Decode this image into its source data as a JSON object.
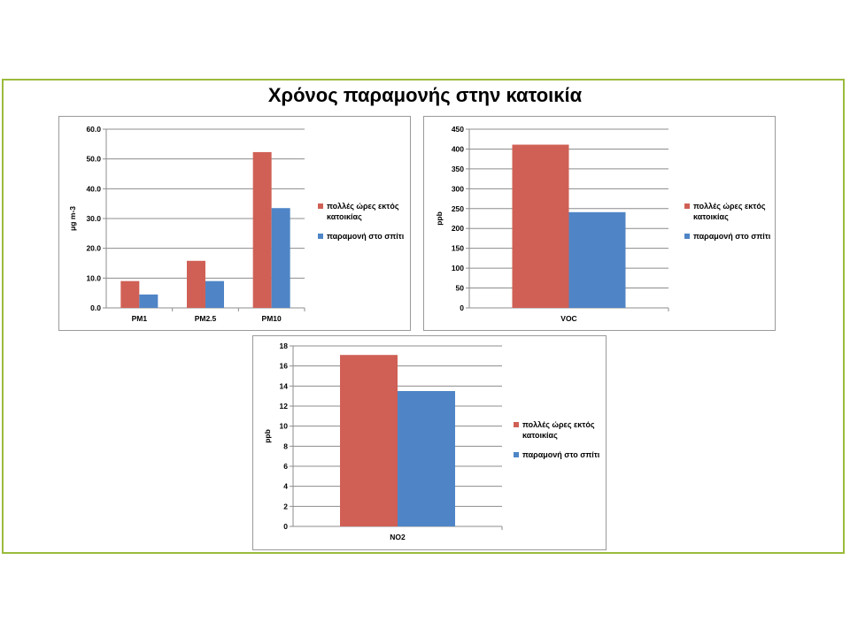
{
  "title": "Χρόνος παραμονής στην κατοικία",
  "colors": {
    "series_a": "#d06055",
    "series_b": "#4f85c6",
    "frame": "#9bbb3b"
  },
  "legend": {
    "series_a": "πολλές ώρες εκτός κατοικίας",
    "series_b": "παραμονή στο σπίτι"
  },
  "chart_data": [
    {
      "type": "bar",
      "categories": [
        "PM1",
        "PM2.5",
        "PM10"
      ],
      "series": [
        {
          "name": "πολλές ώρες εκτός κατοικίας",
          "values": [
            9.0,
            15.8,
            52.3
          ]
        },
        {
          "name": "παραμονή στο σπίτι",
          "values": [
            4.5,
            9.0,
            33.5
          ]
        }
      ],
      "ylabel": "μg m-3",
      "ylim": [
        0,
        60
      ],
      "yticks": [
        "0.0",
        "10.0",
        "20.0",
        "30.0",
        "40.0",
        "50.0",
        "60.0"
      ],
      "legend_position": "right",
      "grid": true
    },
    {
      "type": "bar",
      "categories": [
        "VOC"
      ],
      "series": [
        {
          "name": "πολλές ώρες εκτός κατοικίας",
          "values": [
            411
          ]
        },
        {
          "name": "παραμονή στο σπίτι",
          "values": [
            241
          ]
        }
      ],
      "ylabel": "ppb",
      "ylim": [
        0,
        450
      ],
      "yticks": [
        "0",
        "50",
        "100",
        "150",
        "200",
        "250",
        "300",
        "350",
        "400",
        "450"
      ],
      "legend_position": "right",
      "grid": true
    },
    {
      "type": "bar",
      "categories": [
        "NO2"
      ],
      "series": [
        {
          "name": "πολλές ώρες εκτός κατοικίας",
          "values": [
            17.1
          ]
        },
        {
          "name": "παραμονή στο σπίτι",
          "values": [
            13.5
          ]
        }
      ],
      "ylabel": "ppb",
      "ylim": [
        0,
        18
      ],
      "yticks": [
        "0",
        "2",
        "4",
        "6",
        "8",
        "10",
        "12",
        "14",
        "16",
        "18"
      ],
      "legend_position": "right",
      "grid": true
    }
  ]
}
